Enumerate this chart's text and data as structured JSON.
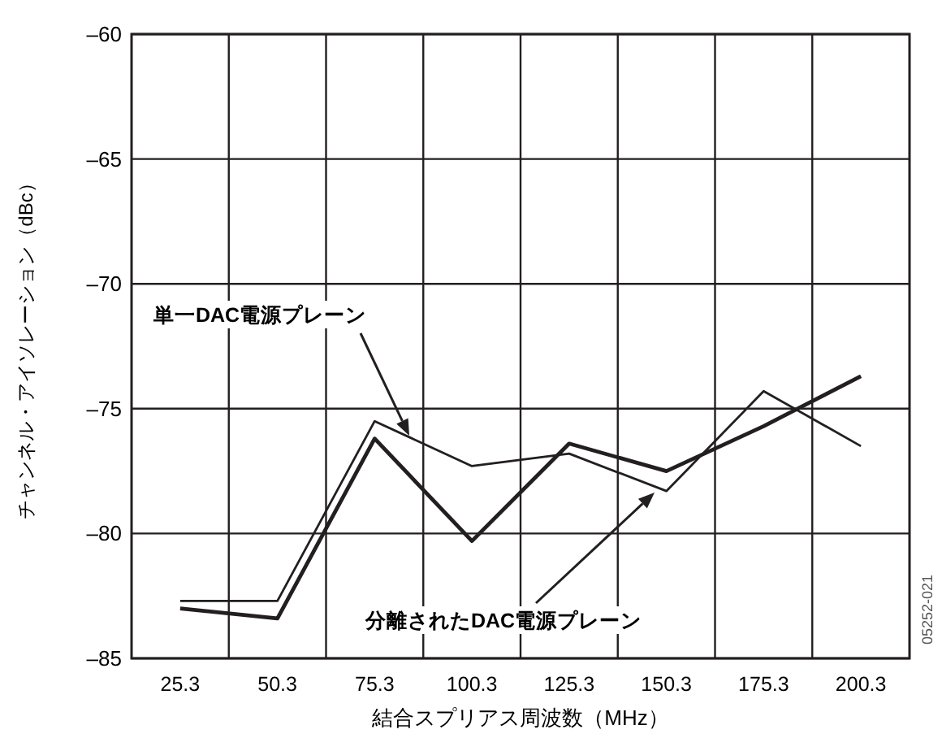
{
  "chart_data": {
    "type": "line",
    "xlabel": "結合スプリアス周波数（MHz）",
    "ylabel": "チャンネル・アイソレーション（dBc）",
    "categories": [
      "25.3",
      "50.3",
      "75.3",
      "100.3",
      "125.3",
      "150.3",
      "175.3",
      "200.3"
    ],
    "series": [
      {
        "color": "#231f20",
        "values": [
          -82.7,
          -82.7,
          -75.5,
          -77.3,
          -76.8,
          -78.3,
          -74.3,
          -76.5
        ]
      },
      {
        "color": "#231f20",
        "values": [
          -83.0,
          -83.4,
          -76.2,
          -80.3,
          -76.4,
          -77.5,
          -75.7,
          -73.7
        ]
      }
    ],
    "ylim": [
      -85,
      -60
    ],
    "yticks": [
      {
        "value": -85,
        "label": "–85"
      },
      {
        "value": -80,
        "label": "–80"
      },
      {
        "value": -75,
        "label": "–75"
      },
      {
        "value": -70,
        "label": "–70"
      },
      {
        "value": -65,
        "label": "–65"
      },
      {
        "value": -60,
        "label": "–60"
      }
    ],
    "grid": true,
    "marker": "none",
    "line_style": "solid",
    "annotations": [
      "単一DAC電源プレーン",
      "分離されたDAC電源プレーン",
      "05252-021"
    ]
  }
}
